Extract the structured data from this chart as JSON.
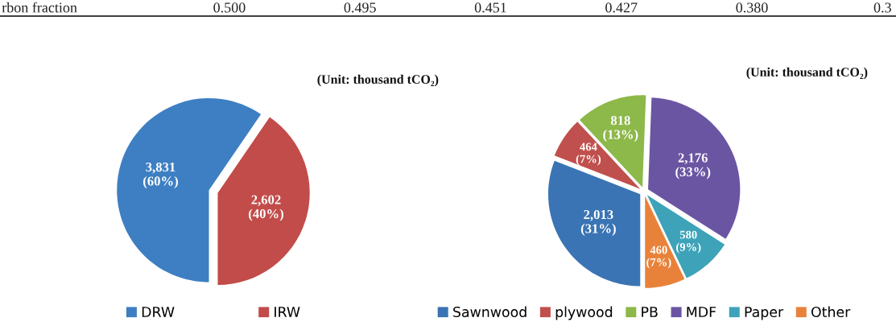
{
  "chart_data": [
    {
      "type": "other",
      "annotations": [
        "rbon fraction",
        "0.500",
        "0.495",
        "0.451",
        "0.427",
        "0.380",
        "0.3"
      ]
    },
    {
      "type": "pie",
      "title": "(Unit: thousand tCO₂)",
      "categories": [
        "DRW",
        "IRW"
      ],
      "values": [
        3831,
        2602
      ],
      "colors": [
        "#3d7fc2",
        "#c24c4a"
      ],
      "value_labels": [
        "3,831\n(60%)",
        "2,602\n(40%)"
      ],
      "legend": "bottom"
    },
    {
      "type": "pie",
      "title": "(Unit: thousand tCO₂)",
      "categories": [
        "Sawnwood",
        "plywood",
        "PB",
        "MDF",
        "Paper",
        "Other"
      ],
      "values": [
        2013,
        464,
        818,
        2176,
        580,
        460
      ],
      "colors": [
        "#3a74b4",
        "#c0504d",
        "#8db84a",
        "#6a55a3",
        "#3ea3b8",
        "#e8823a"
      ],
      "value_labels": [
        "2,013\n(31%)",
        "464\n(7%)",
        "818\n(13%)",
        "2,176\n(33%)",
        "580\n(9%)",
        "460\n(7%)"
      ],
      "legend": "bottom"
    }
  ]
}
